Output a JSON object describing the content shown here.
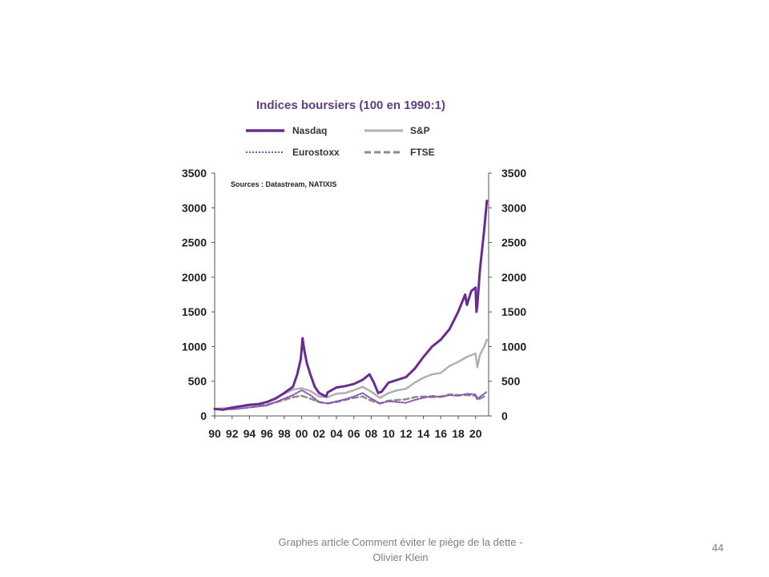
{
  "footer": {
    "caption": "Graphes article Comment  éviter le piège de la dette - Olivier Klein",
    "page_number": "44"
  },
  "chart_data": {
    "type": "line",
    "title": "Indices boursiers (100 en 1990:1)",
    "source_note": "Sources : Datastream, NATIXIS",
    "xlabel": "",
    "ylabel": "",
    "x_range": [
      1990,
      2021.5
    ],
    "x_tick_labels": [
      "90",
      "92",
      "94",
      "96",
      "98",
      "00",
      "02",
      "04",
      "06",
      "08",
      "10",
      "12",
      "14",
      "16",
      "18",
      "20"
    ],
    "ylim": [
      0,
      3500
    ],
    "y_ticks": [
      0,
      500,
      1000,
      1500,
      2000,
      2500,
      3000,
      3500
    ],
    "y_axes": [
      "left",
      "right"
    ],
    "grid": false,
    "legend": "top",
    "series": [
      {
        "name": "Nasdaq",
        "color": "#6a2c91",
        "style": "solid",
        "x": [
          1990,
          1991,
          1992,
          1993,
          1994,
          1995,
          1996,
          1997,
          1998,
          1999,
          1999.5,
          1999.9,
          2000.1,
          2000.3,
          2000.6,
          2001,
          2001.5,
          2002,
          2002.8,
          2003,
          2004,
          2005,
          2006,
          2007,
          2007.8,
          2008.3,
          2008.8,
          2009.2,
          2010,
          2011,
          2012,
          2013,
          2014,
          2015,
          2016,
          2017,
          2018,
          2018.8,
          2019,
          2019.5,
          2020,
          2020.1,
          2020.2,
          2020.5,
          2021,
          2021.3
        ],
        "y": [
          100,
          90,
          120,
          140,
          160,
          170,
          200,
          250,
          330,
          420,
          600,
          820,
          1120,
          950,
          760,
          600,
          420,
          330,
          280,
          340,
          410,
          430,
          460,
          520,
          600,
          480,
          330,
          350,
          480,
          520,
          560,
          680,
          850,
          1000,
          1100,
          1250,
          1500,
          1750,
          1600,
          1800,
          1850,
          1500,
          1600,
          2100,
          2700,
          3100
        ]
      },
      {
        "name": "S&P",
        "color": "#b0b0b0",
        "style": "solid",
        "x": [
          1990,
          1992,
          1994,
          1996,
          1998,
          1999,
          2000,
          2001,
          2002,
          2003,
          2004,
          2005,
          2006,
          2007,
          2008,
          2009,
          2010,
          2011,
          2012,
          2013,
          2014,
          2015,
          2016,
          2017,
          2018,
          2019,
          2020,
          2020.2,
          2020.5,
          2021,
          2021.3
        ],
        "y": [
          100,
          120,
          140,
          200,
          320,
          380,
          400,
          360,
          280,
          270,
          320,
          330,
          370,
          420,
          350,
          260,
          330,
          370,
          390,
          480,
          550,
          600,
          620,
          720,
          780,
          850,
          900,
          700,
          880,
          1000,
          1100
        ]
      },
      {
        "name": "Eurostoxx",
        "color": "#8a4fb0",
        "style": "dotted",
        "x": [
          1990,
          1992,
          1994,
          1996,
          1998,
          1999,
          2000,
          2001,
          2002,
          2003,
          2004,
          2005,
          2006,
          2007,
          2008,
          2009,
          2010,
          2011,
          2012,
          2013,
          2014,
          2015,
          2016,
          2017,
          2018,
          2019,
          2020,
          2020.2,
          2021,
          2021.3
        ],
        "y": [
          100,
          95,
          120,
          150,
          250,
          300,
          370,
          300,
          200,
          180,
          210,
          240,
          280,
          330,
          250,
          180,
          210,
          200,
          190,
          230,
          260,
          290,
          270,
          300,
          290,
          320,
          310,
          250,
          320,
          350
        ]
      },
      {
        "name": "FTSE",
        "color": "#8c8c8c",
        "style": "dashed",
        "x": [
          1990,
          1992,
          1994,
          1996,
          1998,
          1999,
          2000,
          2001,
          2002,
          2003,
          2004,
          2005,
          2006,
          2007,
          2008,
          2009,
          2010,
          2011,
          2012,
          2013,
          2014,
          2015,
          2016,
          2017,
          2018,
          2019,
          2020,
          2020.2,
          2021,
          2021.3
        ],
        "y": [
          100,
          110,
          130,
          160,
          230,
          270,
          290,
          250,
          200,
          180,
          200,
          230,
          260,
          280,
          220,
          180,
          220,
          230,
          240,
          270,
          280,
          270,
          280,
          310,
          300,
          300,
          290,
          230,
          280,
          300
        ]
      }
    ]
  }
}
